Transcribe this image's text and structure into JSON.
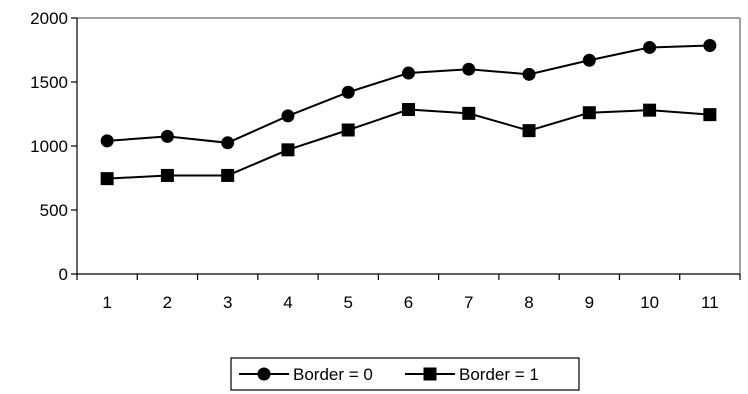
{
  "chart_data": {
    "type": "line",
    "title": "",
    "xlabel": "",
    "ylabel": "",
    "categories": [
      "1",
      "2",
      "3",
      "4",
      "5",
      "6",
      "7",
      "8",
      "9",
      "10",
      "11"
    ],
    "ylim": [
      0,
      2000
    ],
    "yticks": [
      0,
      500,
      1000,
      1500,
      2000
    ],
    "grid": false,
    "legend_position": "bottom",
    "series": [
      {
        "name": "Border = 0",
        "marker": "circle",
        "color": "#000000",
        "values": [
          1040,
          1075,
          1025,
          1235,
          1420,
          1570,
          1600,
          1560,
          1670,
          1770,
          1785
        ]
      },
      {
        "name": "Border = 1",
        "marker": "square",
        "color": "#000000",
        "values": [
          745,
          770,
          770,
          970,
          1125,
          1285,
          1255,
          1120,
          1260,
          1280,
          1245
        ]
      }
    ]
  }
}
